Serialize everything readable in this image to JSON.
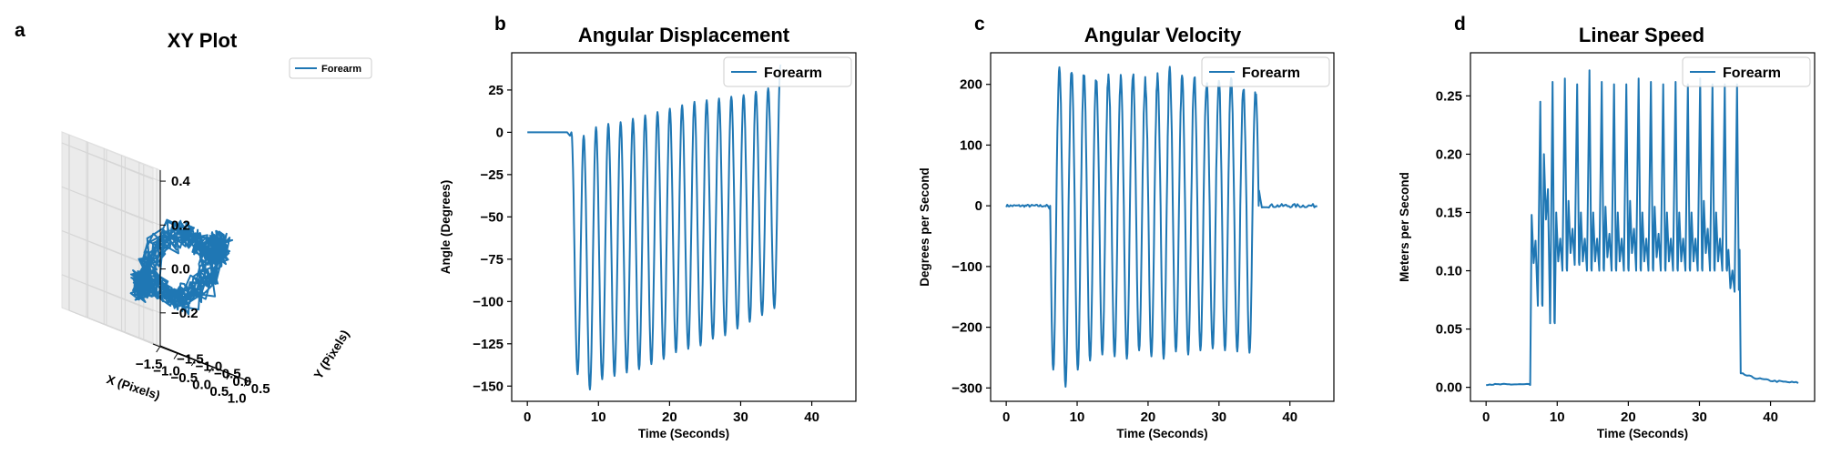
{
  "colors": {
    "series": "#1f77b4",
    "axis": "#000000",
    "pane": "#f2f2f2",
    "grid": "#d6d6d6"
  },
  "chart_data": [
    {
      "id": "a",
      "panel_label": "a",
      "type": "line3d",
      "title": "XY Plot",
      "xlabel": "X (Pixels)",
      "ylabel": "Y (Pixels)",
      "zlabel": "",
      "xlim": [
        -1.7,
        1.1
      ],
      "ylim": [
        -1.7,
        0.75
      ],
      "zlim": [
        -0.35,
        0.45
      ],
      "xticks": [
        -1.5,
        -1.0,
        -0.5,
        0.0,
        0.5,
        1.0
      ],
      "xtick_labels": [
        "−1.5",
        "−1.0",
        "−0.5",
        "0.0",
        "0.5",
        "1.0"
      ],
      "yticks": [
        -1.5,
        -1.0,
        -0.5,
        0.0,
        0.5
      ],
      "ytick_labels": [
        "−1.5",
        "−1.0",
        "−0.5",
        "0.0",
        "0.5"
      ],
      "zticks": [
        -0.2,
        0.0,
        0.2,
        0.4
      ],
      "ztick_labels": [
        "−0.2",
        "0.0",
        "0.2",
        "0.4"
      ],
      "legend": {
        "entries": [
          "Forearm"
        ],
        "placement": "upper-right"
      },
      "series": [
        {
          "name": "Forearm",
          "description": "dense closed loop trajectory, repeated ~17 cycles",
          "cycles": 17,
          "x_range": [
            -1.6,
            1.0
          ],
          "y_range": [
            -0.3,
            0.6
          ],
          "z_range": [
            -0.3,
            0.4
          ]
        }
      ]
    },
    {
      "id": "b",
      "panel_label": "b",
      "type": "line",
      "title": "Angular Displacement",
      "xlabel": "Time (Seconds)",
      "ylabel": "Angle (Degrees)",
      "xlim": [
        -2.2,
        46.2
      ],
      "ylim": [
        -159,
        47
      ],
      "xticks": [
        0,
        10,
        20,
        30,
        40
      ],
      "xtick_labels": [
        "0",
        "10",
        "20",
        "30",
        "40"
      ],
      "yticks": [
        -150,
        -125,
        -100,
        -75,
        -50,
        -25,
        0,
        25
      ],
      "ytick_labels": [
        "−150",
        "−125",
        "−100",
        "−75",
        "−50",
        "−25",
        "0",
        "25"
      ],
      "grid": false,
      "legend": {
        "entries": [
          "Forearm"
        ],
        "placement": "upper-right"
      },
      "series": [
        {
          "name": "Forearm",
          "baseline": 0,
          "start_time": 6.2,
          "end_time": 35.6,
          "cycles": 17,
          "peaks": [
            0,
            -2,
            3,
            5,
            6,
            8,
            10,
            12,
            14,
            16,
            18,
            19,
            20,
            21,
            22,
            24,
            26,
            40
          ],
          "troughs": [
            -143,
            -152,
            -146,
            -144,
            -142,
            -140,
            -137,
            -134,
            -130,
            -128,
            -126,
            -122,
            -120,
            -116,
            -112,
            -108,
            -104
          ]
        }
      ]
    },
    {
      "id": "c",
      "panel_label": "c",
      "type": "line",
      "title": "Angular Velocity",
      "xlabel": "Time (Seconds)",
      "ylabel": "Degrees per Second",
      "xlim": [
        -2.2,
        46.2
      ],
      "ylim": [
        -322,
        252
      ],
      "xticks": [
        0,
        10,
        20,
        30,
        40
      ],
      "xtick_labels": [
        "0",
        "10",
        "20",
        "30",
        "40"
      ],
      "yticks": [
        -300,
        -200,
        -100,
        0,
        100,
        200
      ],
      "ytick_labels": [
        "−300",
        "−200",
        "−100",
        "0",
        "100",
        "200"
      ],
      "grid": false,
      "legend": {
        "entries": [
          "Forearm"
        ],
        "placement": "upper-right"
      },
      "series": [
        {
          "name": "Forearm",
          "baseline": 0,
          "start_time": 6.2,
          "end_time": 35.6,
          "cycles": 17,
          "peaks": [
            228,
            225,
            215,
            210,
            218,
            208,
            222,
            205,
            210,
            225,
            208,
            212,
            200,
            205,
            210,
            195,
            185
          ],
          "troughs": [
            -270,
            -298,
            -270,
            -255,
            -245,
            -248,
            -252,
            -238,
            -248,
            -252,
            -240,
            -245,
            -238,
            -235,
            -238,
            -240,
            -242
          ]
        }
      ]
    },
    {
      "id": "d",
      "panel_label": "d",
      "type": "line",
      "title": "Linear Speed",
      "xlabel": "Time (Seconds)",
      "ylabel": "Meters per Second",
      "xlim": [
        -2.2,
        46.2
      ],
      "ylim": [
        -0.012,
        0.287
      ],
      "xticks": [
        0,
        10,
        20,
        30,
        40
      ],
      "xtick_labels": [
        "0",
        "10",
        "20",
        "30",
        "40"
      ],
      "yticks": [
        0.0,
        0.05,
        0.1,
        0.15,
        0.2,
        0.25
      ],
      "ytick_labels": [
        "0.00",
        "0.05",
        "0.10",
        "0.15",
        "0.20",
        "0.25"
      ],
      "grid": false,
      "legend": {
        "entries": [
          "Forearm"
        ],
        "placement": "upper-right"
      },
      "series": [
        {
          "name": "Forearm",
          "baseline": 0.002,
          "start_time": 6.2,
          "end_time": 35.6,
          "cycles": 17,
          "major_peaks": [
            0.245,
            0.262,
            0.265,
            0.26,
            0.272,
            0.262,
            0.26,
            0.26,
            0.265,
            0.262,
            0.26,
            0.262,
            0.26,
            0.265,
            0.26,
            0.26,
            0.26
          ],
          "minor_peaks": [
            0.148,
            0.2,
            0.15,
            0.16,
            0.15,
            0.15,
            0.155,
            0.15,
            0.16,
            0.15,
            0.155,
            0.15,
            0.15,
            0.15,
            0.16,
            0.15,
            0.118
          ],
          "troughs": [
            0.07,
            0.055,
            0.1,
            0.105,
            0.1,
            0.1,
            0.1,
            0.1,
            0.1,
            0.1,
            0.1,
            0.1,
            0.1,
            0.1,
            0.1,
            0.1,
            0.082
          ],
          "tail_value": 0.012,
          "end_value": 0.003
        }
      ]
    }
  ]
}
